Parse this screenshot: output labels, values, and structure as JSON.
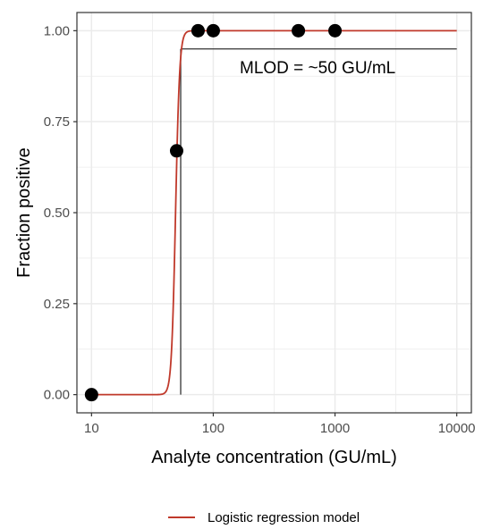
{
  "chart_data": {
    "type": "scatter",
    "title": "",
    "xlabel": "Analyte concentration (GU/mL)",
    "ylabel": "Fraction positive",
    "xscale": "log10",
    "xlim": [
      10,
      10000
    ],
    "ylim": [
      0,
      1
    ],
    "x_ticks": [
      10,
      100,
      1000,
      10000
    ],
    "x_tick_labels": [
      "10",
      "100",
      "1000",
      "10000"
    ],
    "y_ticks": [
      0,
      0.25,
      0.5,
      0.75,
      1
    ],
    "y_tick_labels": [
      "0.00",
      "0.25",
      "0.50",
      "0.75",
      "1.00"
    ],
    "grid": true,
    "points": [
      {
        "x": 10,
        "y": 0
      },
      {
        "x": 50,
        "y": 0.67
      },
      {
        "x": 75,
        "y": 1
      },
      {
        "x": 100,
        "y": 1
      },
      {
        "x": 500,
        "y": 1
      },
      {
        "x": 1000,
        "y": 1
      }
    ],
    "model_curve": {
      "name": "Logistic regression model",
      "color": "#c0392b",
      "midpoint": 49,
      "steepness_per_log10": 60
    },
    "reference_lines": {
      "horizontal_y": 0.95,
      "vertical_x": 54
    },
    "annotation": "MLOD = ~50 GU/mL",
    "legend": {
      "position": "bottom",
      "entries": [
        {
          "label": "Logistic regression model",
          "color": "#c0392b"
        }
      ]
    },
    "colors": {
      "points": "#000000",
      "reference_lines": "#333333",
      "grid": "#ebebeb",
      "panel_border": "#333333"
    }
  }
}
